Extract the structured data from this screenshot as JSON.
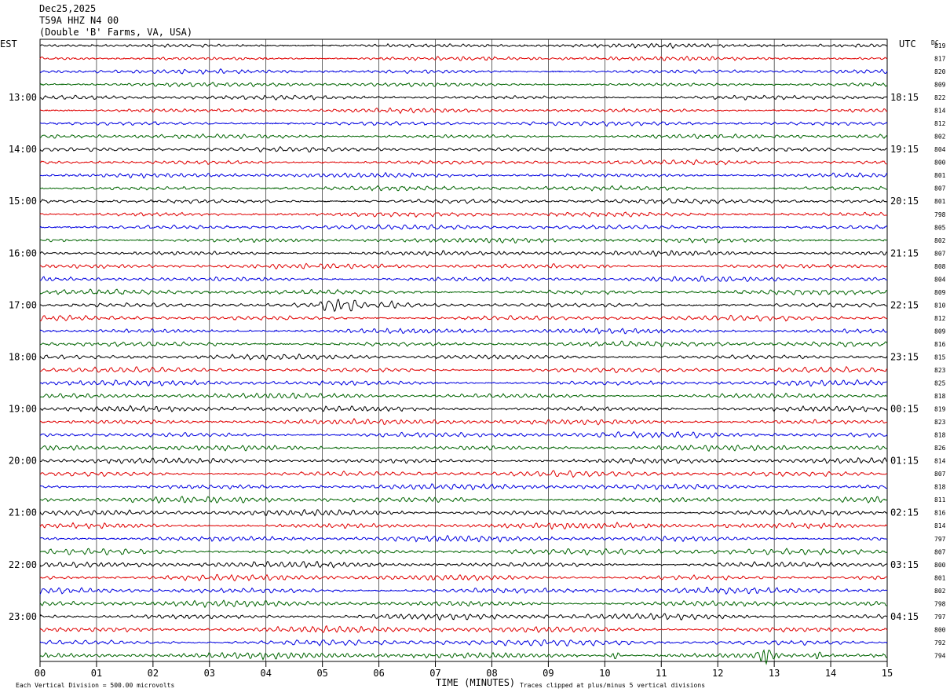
{
  "header": {
    "date": "Dec25,2025",
    "station": "T59A HHZ N4 00",
    "location": "(Double 'B' Farms, VA, USA)"
  },
  "left_timezone": "EST",
  "right_timezone": "UTC",
  "dc_label": "DC",
  "x_axis_label": "TIME (MINUTES)",
  "scale_note": "Each Vertical Division =  500.00 microvolts",
  "clip_note": "Traces clipped at plus/minus 5 vertical divisions",
  "chart_data": {
    "type": "line",
    "subtype": "helicorder",
    "x_ticks": [
      "00",
      "01",
      "02",
      "03",
      "04",
      "05",
      "06",
      "07",
      "08",
      "09",
      "10",
      "11",
      "12",
      "13",
      "14",
      "15"
    ],
    "xlim": [
      0,
      15
    ],
    "left_hour_labels": [
      "13:00",
      "14:00",
      "15:00",
      "16:00",
      "17:00",
      "18:00",
      "19:00",
      "20:00",
      "21:00",
      "22:00",
      "23:00"
    ],
    "right_hour_labels": [
      "18:15",
      "19:15",
      "20:15",
      "21:15",
      "22:15",
      "23:15",
      "00:15",
      "01:15",
      "02:15",
      "03:15",
      "04:15"
    ],
    "dc_offsets": [
      819,
      817,
      820,
      809,
      822,
      814,
      812,
      802,
      804,
      800,
      801,
      807,
      801,
      798,
      805,
      802,
      807,
      808,
      804,
      809,
      810,
      812,
      809,
      816,
      815,
      823,
      825,
      818,
      819,
      823,
      818,
      826,
      814,
      807,
      818,
      811,
      816,
      814,
      797,
      807,
      800,
      801,
      802,
      798,
      797,
      800,
      792,
      794
    ],
    "trace_colors": [
      "#000000",
      "#e00000",
      "#0000e0",
      "#006400"
    ],
    "grid": true,
    "events": [
      {
        "row": 20,
        "start_min": 4.8,
        "end_min": 5.8,
        "amplitude": 3.0
      },
      {
        "row": 20,
        "start_min": 6.1,
        "end_min": 6.5,
        "amplitude": 1.6
      },
      {
        "row": 47,
        "start_min": 12.6,
        "end_min": 13.1,
        "amplitude": 3.2
      },
      {
        "row": 47,
        "start_min": 9.95,
        "end_min": 10.35,
        "amplitude": 1.5
      },
      {
        "row": 47,
        "start_min": 13.6,
        "end_min": 13.9,
        "amplitude": 1.4
      }
    ]
  }
}
